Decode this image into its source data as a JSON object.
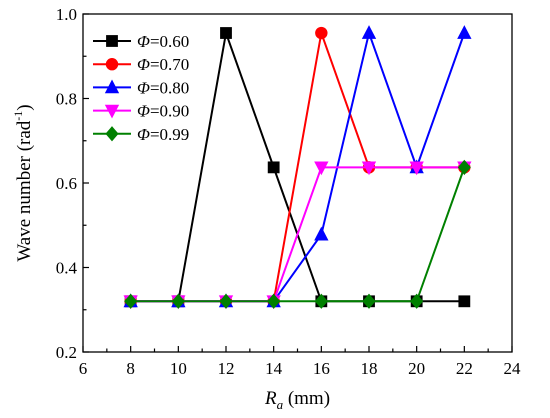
{
  "chart_data": {
    "type": "line",
    "title": "",
    "xlabel": {
      "symbol": "R",
      "subscript": "a",
      "unit": " (mm)"
    },
    "ylabel": {
      "main": "Wave number (rad",
      "superscript": "-1",
      "end": ")"
    },
    "xlim": [
      6,
      24
    ],
    "ylim": [
      0.2,
      1.0
    ],
    "xticks": [
      6,
      8,
      10,
      12,
      14,
      16,
      18,
      20,
      22,
      24
    ],
    "yticks": [
      0.2,
      0.4,
      0.6,
      0.8,
      1.0
    ],
    "xtick_labels": [
      "6",
      "8",
      "10",
      "12",
      "14",
      "16",
      "18",
      "20",
      "22",
      "24"
    ],
    "ytick_labels": [
      "0.2",
      "0.4",
      "0.6",
      "0.8",
      "1.0"
    ],
    "grid": false,
    "legend_position": "top-left",
    "x": [
      8,
      10,
      12,
      14,
      16,
      18,
      20,
      22
    ],
    "series": [
      {
        "name": "Φ=0.60",
        "symbol": "Φ",
        "value_text": "=0.60",
        "color": "#000000",
        "marker": "square",
        "values": [
          0.32,
          0.32,
          0.955,
          0.637,
          0.32,
          0.32,
          0.32,
          0.32
        ]
      },
      {
        "name": "Φ=0.70",
        "symbol": "Φ",
        "value_text": "=0.70",
        "color": "#ff0000",
        "marker": "circle",
        "values": [
          0.32,
          0.32,
          0.32,
          0.32,
          0.955,
          0.637,
          0.637,
          0.637
        ]
      },
      {
        "name": "Φ=0.80",
        "symbol": "Φ",
        "value_text": "=0.80",
        "color": "#0000ff",
        "marker": "triangle-up",
        "values": [
          0.32,
          0.32,
          0.32,
          0.32,
          0.478,
          0.955,
          0.637,
          0.955
        ]
      },
      {
        "name": "Φ=0.90",
        "symbol": "Φ",
        "value_text": "=0.90",
        "color": "#ff00ff",
        "marker": "triangle-down",
        "values": [
          0.32,
          0.32,
          0.32,
          0.32,
          0.637,
          0.637,
          0.637,
          0.637
        ]
      },
      {
        "name": "Φ=0.99",
        "symbol": "Φ",
        "value_text": "=0.99",
        "color": "#008000",
        "marker": "diamond",
        "values": [
          0.32,
          0.32,
          0.32,
          0.32,
          0.32,
          0.32,
          0.32,
          0.637
        ]
      }
    ]
  }
}
